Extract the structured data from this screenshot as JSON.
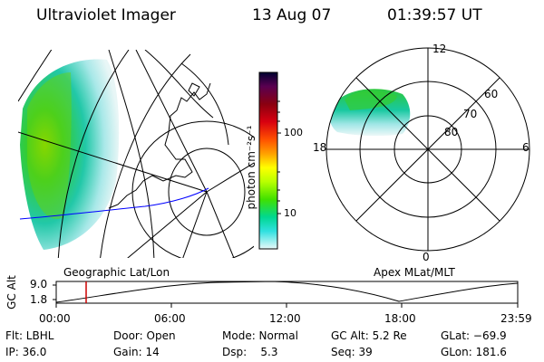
{
  "header": {
    "instrument": "Ultraviolet Imager",
    "date": "13 Aug 07",
    "time": "01:39:57 UT"
  },
  "colorbar": {
    "unit_label": "photon cm⁻²s⁻¹",
    "ticks": [
      "100",
      "10"
    ],
    "colors": [
      "#000030",
      "#5a0050",
      "#8a0010",
      "#d80010",
      "#ff5000",
      "#ffa000",
      "#ffff00",
      "#b8ff00",
      "#40e000",
      "#00d890",
      "#30e0e0",
      "#a0f0f0",
      "#e8f8f8"
    ]
  },
  "geo_panel": {
    "label": "Geographic Lat/Lon",
    "auroral_color": "#33cc33",
    "track_color": "#0000ff"
  },
  "polar_panel": {
    "label": "Apex MLat/MLT",
    "mlt_labels": {
      "top": "12",
      "left": "18",
      "right": "6",
      "bottom": "0"
    },
    "lat_labels": [
      "60",
      "70",
      "80"
    ]
  },
  "altitude_plot": {
    "ylabel": "GC Alt",
    "yticks": [
      "9.0",
      "1.8"
    ],
    "xticks": [
      "00:00",
      "06:00",
      "12:00",
      "18:00",
      "23:59"
    ],
    "current_time_marker_color": "#cc0000"
  },
  "info": {
    "flt": "Flt: LBHL",
    "ip": "IP: 36.0",
    "door": "Door: Open",
    "gain": "Gain: 14",
    "mode": "Mode: Normal",
    "dsp": "Dsp:    5.3",
    "gc_alt": "GC Alt: 5.2 Re",
    "seq": "Seq: 39",
    "glat": "GLat: −69.9",
    "glon": "GLon: 181.6"
  }
}
